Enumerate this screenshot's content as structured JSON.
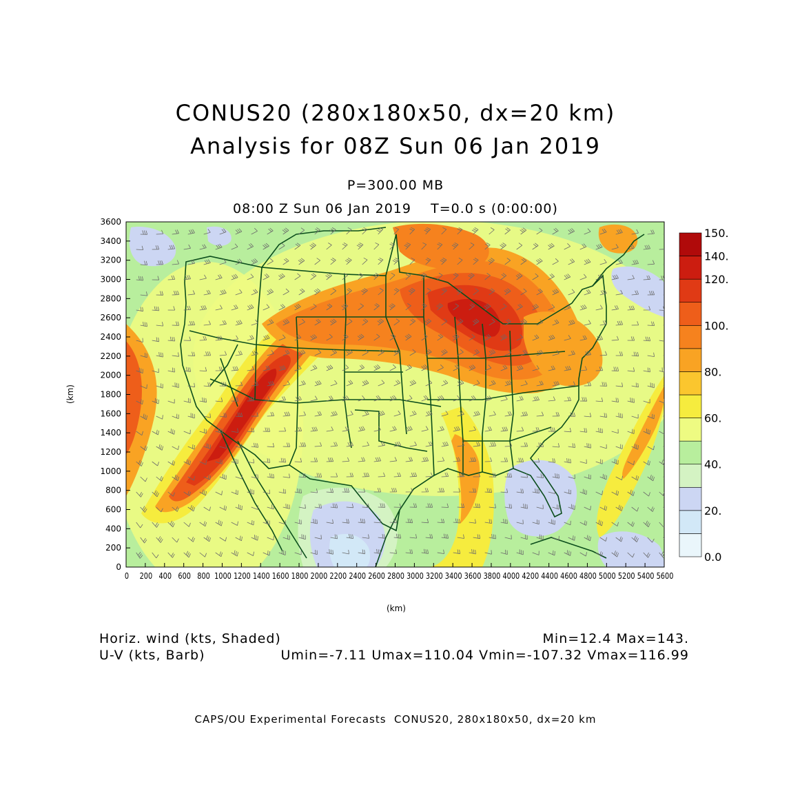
{
  "title": {
    "line1": "CONUS20 (280x180x50, dx=20 km)",
    "line2": "Analysis for 08Z Sun 06 Jan 2019"
  },
  "level_label": "P=300.00 MB",
  "time_label": "08:00 Z Sun 06 Jan 2019    T=0.0 s (0:00:00)",
  "axes": {
    "x_unit": "(km)",
    "y_unit": "(km)",
    "x_ticks": [
      0,
      200,
      400,
      600,
      800,
      1000,
      1200,
      1400,
      1600,
      1800,
      2000,
      2200,
      2400,
      2600,
      2800,
      3000,
      3200,
      3400,
      3600,
      3800,
      4000,
      4200,
      4400,
      4600,
      4800,
      5000,
      5200,
      5400,
      5600
    ],
    "y_ticks": [
      0,
      200,
      400,
      600,
      800,
      1000,
      1200,
      1400,
      1600,
      1800,
      2000,
      2200,
      2400,
      2600,
      2800,
      3000,
      3200,
      3400,
      3600
    ],
    "x_range": [
      0,
      5600
    ],
    "y_range": [
      0,
      3600
    ]
  },
  "colorbar": {
    "labels": [
      "0.0",
      "20.",
      "40.",
      "60.",
      "80.",
      "100.",
      "120.",
      "140.",
      "150."
    ],
    "colors": [
      "#eaf6fb",
      "#d2e8f7",
      "#ccd6f3",
      "#d4f3c3",
      "#b8ee9d",
      "#eefb82",
      "#f6ec3e",
      "#fbc62e",
      "#f9a323",
      "#f6821e",
      "#ee5e1a",
      "#e03a15",
      "#cc1d10",
      "#b00a0a"
    ]
  },
  "legend": {
    "shaded": "Horiz. wind (kts, Shaded)",
    "barb": "U-V (kts, Barb)",
    "minmax": "Min=12.4 Max=143.",
    "uv_stats": "Umin=-7.11 Umax=110.04 Vmin=-107.32 Vmax=116.99"
  },
  "credit": "CAPS/OU Experimental Forecasts  CONUS20, 280x180x50, dx=20 km",
  "map_colors": {
    "borders": "#0b4d1c",
    "barbs": "#6a6a6a"
  }
}
